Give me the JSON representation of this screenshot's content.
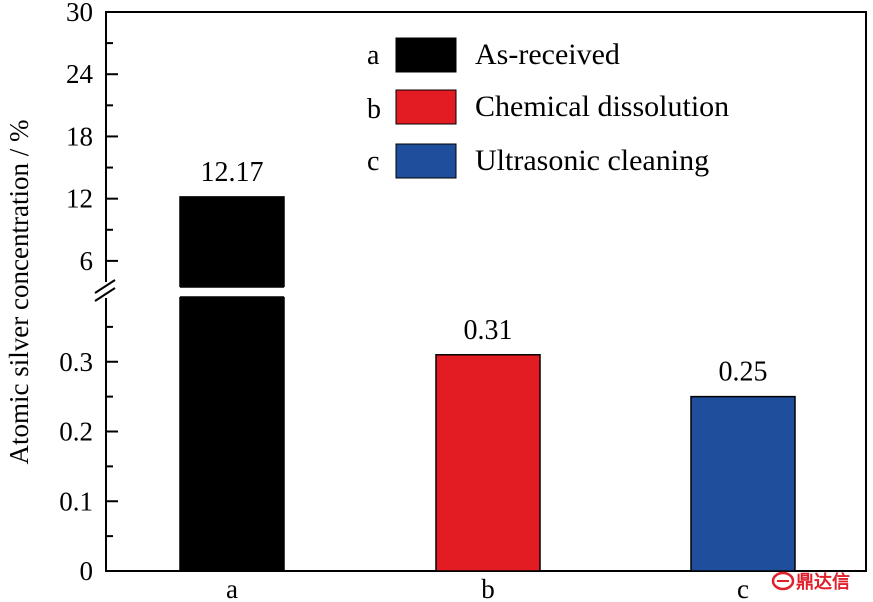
{
  "chart_data": {
    "type": "bar",
    "ylabel": "Atomic silver concentration / %",
    "categories": [
      "a",
      "b",
      "c"
    ],
    "values": [
      12.17,
      0.31,
      0.25
    ],
    "value_labels": [
      "12.17",
      "0.31",
      "0.25"
    ],
    "colors": [
      "#000000",
      "#e31c23",
      "#1f4e9c"
    ],
    "broken_y_axis": true,
    "upper_segment": {
      "ylim": [
        3,
        30
      ],
      "ticks": [
        "30",
        "24",
        "18",
        "12",
        "6"
      ]
    },
    "lower_segment": {
      "ylim": [
        0,
        0.4
      ],
      "ticks": [
        "0.3",
        "0.2",
        "0.1",
        "0"
      ]
    },
    "legend": {
      "placement": "top-right",
      "items": [
        {
          "key": "a",
          "label": "As-received",
          "color": "#000000"
        },
        {
          "key": "b",
          "label": "Chemical dissolution",
          "color": "#e31c23"
        },
        {
          "key": "c",
          "label": "Ultrasonic cleaning",
          "color": "#1f4e9c"
        }
      ]
    },
    "grid": false
  },
  "watermark": {
    "text": "鼎达信",
    "icon": "logo-icon"
  }
}
